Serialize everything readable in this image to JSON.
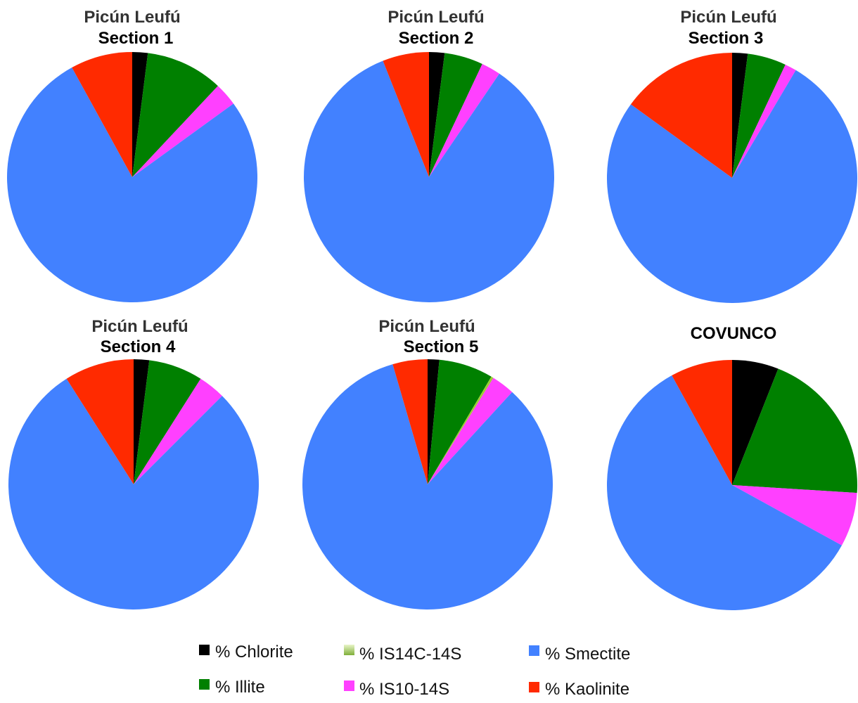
{
  "chart_data": {
    "type": "pie",
    "series_labels": [
      "% Chlorite",
      "% Illite",
      "% IS10-14S",
      "% IS14C-14S",
      "% Smectite",
      "% Kaolinite"
    ],
    "colors": {
      "% Chlorite": "#000000",
      "% Illite": "#008000",
      "% IS14C-14S": "#9acd32",
      "% IS10-14S": "#ff40ff",
      "% Smectite": "#4281ff",
      "% Kaolinite": "#ff2a00"
    },
    "charts": [
      {
        "title_line1": "Picún Leufú",
        "title_line2": "Section 1",
        "values": {
          "% Chlorite": 2,
          "% Illite": 10,
          "% IS10-14S": 3,
          "% IS14C-14S": 0,
          "% Smectite": 77,
          "% Kaolinite": 8
        }
      },
      {
        "title_line1": "Picún Leufú",
        "title_line2": "Section 2",
        "values": {
          "% Chlorite": 2,
          "% Illite": 5,
          "% IS10-14S": 2.5,
          "% IS14C-14S": 0,
          "% Smectite": 84.5,
          "% Kaolinite": 6
        }
      },
      {
        "title_line1": "Picún Leufú",
        "title_line2": "Section 3",
        "values": {
          "% Chlorite": 2,
          "% Illite": 5,
          "% IS10-14S": 1.5,
          "% IS14C-14S": 0,
          "% Smectite": 76.5,
          "% Kaolinite": 15
        }
      },
      {
        "title_line1": "Picún Leufú",
        "title_line2": "Section 4",
        "values": {
          "% Chlorite": 2,
          "% Illite": 7,
          "% IS10-14S": 3.5,
          "% IS14C-14S": 0,
          "% Smectite": 78.5,
          "% Kaolinite": 9
        }
      },
      {
        "title_line1": "Picún Leufú",
        "title_line2": "Section 5",
        "values": {
          "% Chlorite": 1.5,
          "% Illite": 7,
          "% IS10-14S": 3,
          "% IS14C-14S": 0.3,
          "% Smectite": 83.7,
          "% Kaolinite": 4.5
        }
      },
      {
        "title_line1": "",
        "title_line2": "COVUNCO",
        "values": {
          "% Chlorite": 6,
          "% Illite": 20,
          "% IS10-14S": 7,
          "% IS14C-14S": 0,
          "% Smectite": 59,
          "% Kaolinite": 8
        }
      }
    ]
  }
}
